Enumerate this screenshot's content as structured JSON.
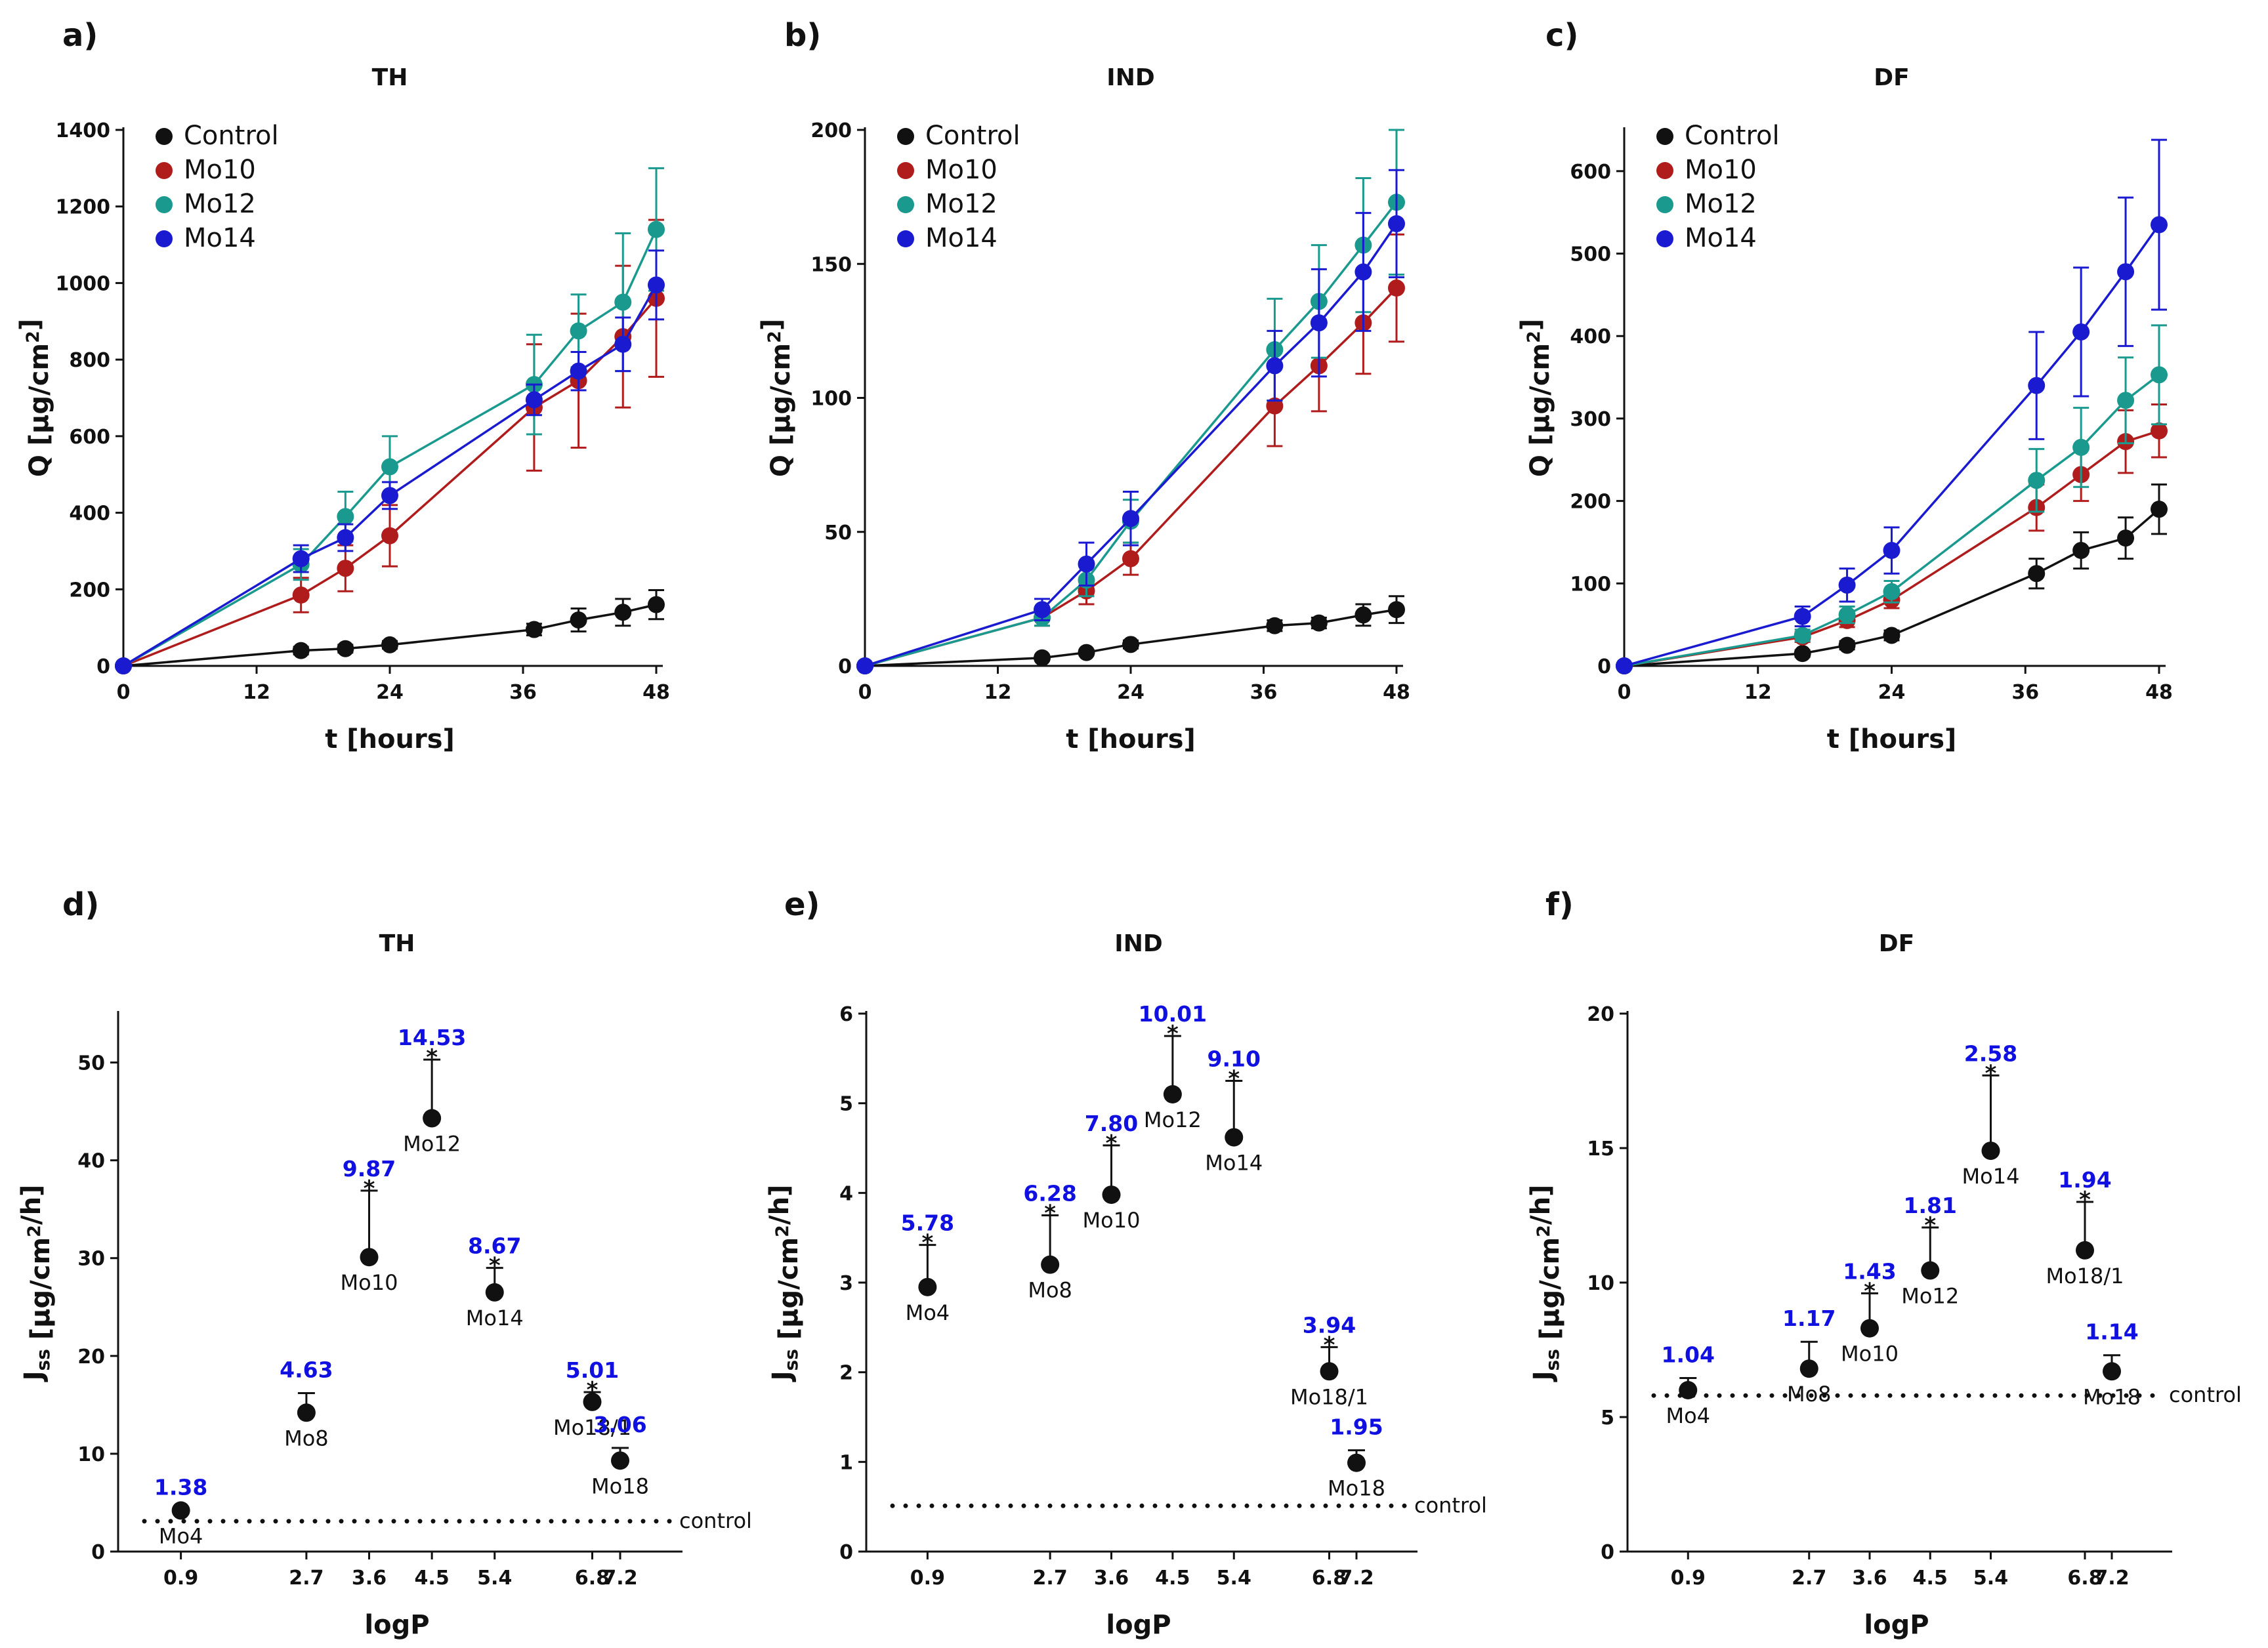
{
  "colors": {
    "Control": "#111111",
    "Mo10": "#b01c1c",
    "Mo12": "#1a9a8e",
    "Mo14": "#1a1ad0",
    "annotation": "#1010e0"
  },
  "chart_data": [
    {
      "panel": "a)",
      "title": "TH",
      "type": "line",
      "xlabel": "t [hours]",
      "ylabel": "Q [µg/cm²]",
      "xlim": [
        0,
        48
      ],
      "ylim": [
        0,
        1400
      ],
      "xticks": [
        "0",
        "12",
        "24",
        "36",
        "48"
      ],
      "yticks": [
        "0",
        "200",
        "400",
        "600",
        "800",
        "1000",
        "1200",
        "1400"
      ],
      "legend": [
        "Control",
        "Mo10",
        "Mo12",
        "Mo14"
      ],
      "x": [
        0,
        16,
        20,
        24,
        37,
        41,
        45,
        48
      ],
      "series": [
        {
          "name": "Control",
          "values": [
            0,
            40,
            45,
            55,
            95,
            120,
            140,
            160
          ],
          "errors": [
            0,
            10,
            10,
            10,
            15,
            30,
            35,
            38
          ]
        },
        {
          "name": "Mo10",
          "values": [
            0,
            185,
            255,
            340,
            675,
            745,
            860,
            960
          ],
          "errors": [
            0,
            45,
            60,
            80,
            165,
            175,
            185,
            205
          ]
        },
        {
          "name": "Mo12",
          "values": [
            0,
            265,
            390,
            520,
            735,
            875,
            950,
            1140
          ],
          "errors": [
            0,
            40,
            65,
            80,
            130,
            95,
            180,
            160
          ]
        },
        {
          "name": "Mo14",
          "values": [
            0,
            280,
            335,
            445,
            695,
            770,
            840,
            995
          ],
          "errors": [
            0,
            35,
            35,
            35,
            40,
            50,
            70,
            90
          ]
        }
      ]
    },
    {
      "panel": "b)",
      "title": "IND",
      "type": "line",
      "xlabel": "t [hours]",
      "ylabel": "Q [µg/cm²]",
      "xlim": [
        0,
        48
      ],
      "ylim": [
        0,
        200
      ],
      "xticks": [
        "0",
        "12",
        "24",
        "36",
        "48"
      ],
      "yticks": [
        "0",
        "50",
        "100",
        "150",
        "200"
      ],
      "legend": [
        "Control",
        "Mo10",
        "Mo12",
        "Mo14"
      ],
      "x": [
        0,
        16,
        20,
        24,
        37,
        41,
        45,
        48
      ],
      "series": [
        {
          "name": "Control",
          "values": [
            0,
            3,
            5,
            8,
            15,
            16,
            19,
            21
          ],
          "errors": [
            0,
            1,
            1,
            1.5,
            2,
            2,
            4,
            5
          ]
        },
        {
          "name": "Mo10",
          "values": [
            0,
            18,
            28,
            40,
            97,
            112,
            128,
            141
          ],
          "errors": [
            0,
            3,
            5,
            6,
            15,
            17,
            19,
            20
          ]
        },
        {
          "name": "Mo12",
          "values": [
            0,
            18,
            32,
            54,
            118,
            136,
            157,
            173
          ],
          "errors": [
            0,
            3,
            6,
            8,
            19,
            21,
            25,
            27
          ]
        },
        {
          "name": "Mo14",
          "values": [
            0,
            21,
            38,
            55,
            112,
            128,
            147,
            165
          ],
          "errors": [
            0,
            4,
            8,
            10,
            13,
            20,
            22,
            20
          ]
        }
      ]
    },
    {
      "panel": "c)",
      "title": "DF",
      "type": "line",
      "xlabel": "t [hours]",
      "ylabel": "Q [µg/cm²]",
      "xlim": [
        0,
        48
      ],
      "ylim": [
        0,
        650
      ],
      "xticks": [
        "0",
        "12",
        "24",
        "36",
        "48"
      ],
      "yticks": [
        "0",
        "100",
        "200",
        "300",
        "400",
        "500",
        "600"
      ],
      "legend": [
        "Control",
        "Mo10",
        "Mo12",
        "Mo14"
      ],
      "x": [
        0,
        16,
        20,
        24,
        37,
        41,
        45,
        48
      ],
      "series": [
        {
          "name": "Control",
          "values": [
            0,
            15,
            25,
            37,
            112,
            140,
            155,
            190
          ],
          "errors": [
            0,
            4,
            5,
            6,
            18,
            22,
            25,
            30
          ]
        },
        {
          "name": "Mo10",
          "values": [
            0,
            35,
            55,
            80,
            192,
            232,
            272,
            285
          ],
          "errors": [
            0,
            6,
            8,
            10,
            28,
            32,
            38,
            32
          ]
        },
        {
          "name": "Mo12",
          "values": [
            0,
            37,
            62,
            90,
            225,
            265,
            322,
            353
          ],
          "errors": [
            0,
            7,
            10,
            13,
            38,
            48,
            52,
            60
          ]
        },
        {
          "name": "Mo14",
          "values": [
            0,
            60,
            98,
            140,
            340,
            405,
            478,
            535
          ],
          "errors": [
            0,
            12,
            20,
            28,
            65,
            78,
            90,
            103
          ]
        }
      ]
    },
    {
      "panel": "d)",
      "title": "TH",
      "type": "scatter",
      "xlabel": "logP",
      "ylabel": "Jss [µg/cm²/h]",
      "xlim": [
        0,
        8
      ],
      "ylim": [
        0,
        55
      ],
      "xticks": [
        "0.9",
        "2.7",
        "3.6",
        "4.5",
        "5.4",
        "6.8",
        "7.2"
      ],
      "xtick_values": [
        0.9,
        2.7,
        3.6,
        4.5,
        5.4,
        6.8,
        7.2
      ],
      "yticks": [
        "0",
        "10",
        "20",
        "30",
        "40",
        "50"
      ],
      "control_value": 3.1,
      "control_label": "control",
      "points": [
        {
          "label": "Mo4",
          "x": 0.9,
          "y": 4.2,
          "err": 0,
          "star": false,
          "ratio": "1.38"
        },
        {
          "label": "Mo8",
          "x": 2.7,
          "y": 14.2,
          "err": 2.0,
          "star": false,
          "ratio": "4.63"
        },
        {
          "label": "Mo10",
          "x": 3.6,
          "y": 30.1,
          "err": 6.8,
          "star": true,
          "ratio": "9.87"
        },
        {
          "label": "Mo12",
          "x": 4.5,
          "y": 44.3,
          "err": 6.0,
          "star": true,
          "ratio": "14.53"
        },
        {
          "label": "Mo14",
          "x": 5.4,
          "y": 26.5,
          "err": 2.5,
          "star": true,
          "ratio": "8.67"
        },
        {
          "label": "Mo18/1",
          "x": 6.8,
          "y": 15.3,
          "err": 1.0,
          "star": true,
          "ratio": "5.01"
        },
        {
          "label": "Mo18",
          "x": 7.2,
          "y": 9.3,
          "err": 1.3,
          "star": false,
          "ratio": "3.06"
        }
      ]
    },
    {
      "panel": "e)",
      "title": "IND",
      "type": "scatter",
      "xlabel": "logP",
      "ylabel": "Jss [µg/cm²/h]",
      "xlim": [
        0,
        8
      ],
      "ylim": [
        0,
        6
      ],
      "xticks": [
        "0.9",
        "2.7",
        "3.6",
        "4.5",
        "5.4",
        "6.8",
        "7.2"
      ],
      "xtick_values": [
        0.9,
        2.7,
        3.6,
        4.5,
        5.4,
        6.8,
        7.2
      ],
      "yticks": [
        "0",
        "1",
        "2",
        "3",
        "4",
        "5",
        "6"
      ],
      "control_value": 0.51,
      "control_label": "control",
      "points": [
        {
          "label": "Mo4",
          "x": 0.9,
          "y": 2.95,
          "err": 0.47,
          "star": true,
          "ratio": "5.78"
        },
        {
          "label": "Mo8",
          "x": 2.7,
          "y": 3.2,
          "err": 0.55,
          "star": true,
          "ratio": "6.28"
        },
        {
          "label": "Mo10",
          "x": 3.6,
          "y": 3.98,
          "err": 0.55,
          "star": true,
          "ratio": "7.80"
        },
        {
          "label": "Mo12",
          "x": 4.5,
          "y": 5.1,
          "err": 0.65,
          "star": true,
          "ratio": "10.01"
        },
        {
          "label": "Mo14",
          "x": 5.4,
          "y": 4.62,
          "err": 0.63,
          "star": true,
          "ratio": "9.10"
        },
        {
          "label": "Mo18/1",
          "x": 6.8,
          "y": 2.01,
          "err": 0.27,
          "star": true,
          "ratio": "3.94"
        },
        {
          "label": "Mo18",
          "x": 7.2,
          "y": 0.99,
          "err": 0.14,
          "star": false,
          "ratio": "1.95"
        }
      ]
    },
    {
      "panel": "f)",
      "title": "DF",
      "type": "scatter",
      "xlabel": "logP",
      "ylabel": "Jss [µg/cm²/h]",
      "xlim": [
        0,
        8
      ],
      "ylim": [
        0,
        20
      ],
      "xticks": [
        "0.9",
        "2.7",
        "3.6",
        "4.5",
        "5.4",
        "6.8",
        "7.2"
      ],
      "xtick_values": [
        0.9,
        2.7,
        3.6,
        4.5,
        5.4,
        6.8,
        7.2
      ],
      "yticks": [
        "0",
        "5",
        "10",
        "15",
        "20"
      ],
      "control_value": 5.8,
      "control_label": "control",
      "points": [
        {
          "label": "Mo4",
          "x": 0.9,
          "y": 6.0,
          "err": 0.45,
          "star": false,
          "ratio": "1.04"
        },
        {
          "label": "Mo8",
          "x": 2.7,
          "y": 6.8,
          "err": 1.0,
          "star": false,
          "ratio": "1.17"
        },
        {
          "label": "Mo10",
          "x": 3.6,
          "y": 8.3,
          "err": 1.3,
          "star": true,
          "ratio": "1.43"
        },
        {
          "label": "Mo12",
          "x": 4.5,
          "y": 10.45,
          "err": 1.6,
          "star": true,
          "ratio": "1.81"
        },
        {
          "label": "Mo14",
          "x": 5.4,
          "y": 14.9,
          "err": 2.8,
          "star": true,
          "ratio": "2.58"
        },
        {
          "label": "Mo18/1",
          "x": 6.8,
          "y": 11.2,
          "err": 1.8,
          "star": true,
          "ratio": "1.94"
        },
        {
          "label": "Mo18",
          "x": 7.2,
          "y": 6.7,
          "err": 0.6,
          "star": false,
          "ratio": "1.14"
        }
      ]
    }
  ]
}
